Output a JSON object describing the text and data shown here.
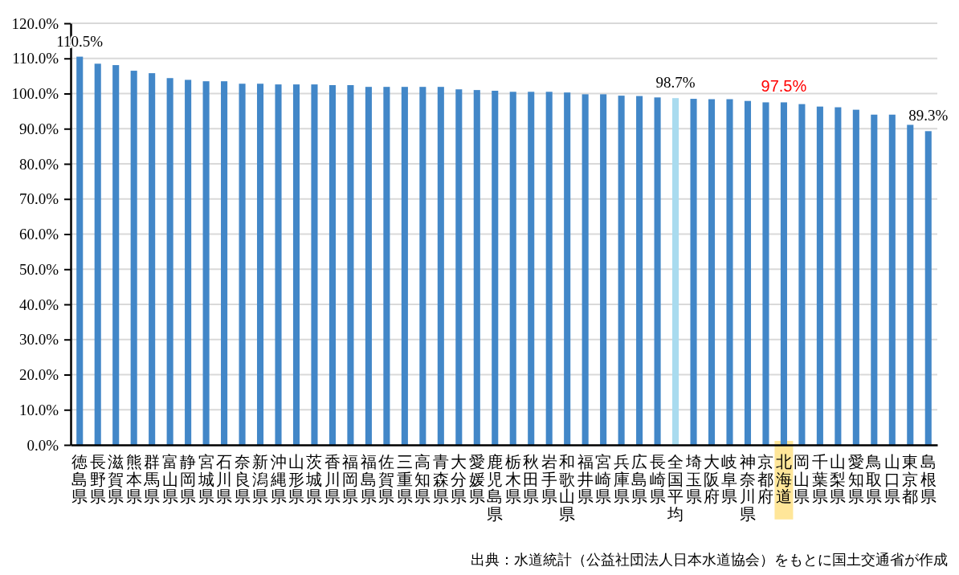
{
  "chart_data": {
    "type": "bar",
    "categories": [
      "徳島県",
      "長野県",
      "滋賀県",
      "熊本県",
      "群馬県",
      "富山県",
      "静岡県",
      "宮城県",
      "石川県",
      "奈良県",
      "新潟県",
      "沖縄県",
      "山形県",
      "茨城県",
      "香川県",
      "福岡県",
      "福島県",
      "佐賀県",
      "三重県",
      "高知県",
      "青森県",
      "大分県",
      "愛媛県",
      "鹿児島県",
      "栃木県",
      "秋田県",
      "岩手県",
      "和歌山県",
      "福井県",
      "宮崎県",
      "兵庫県",
      "広島県",
      "長崎県",
      "全国平均",
      "埼玉県",
      "大阪府",
      "岐阜県",
      "神奈川県",
      "京都府",
      "北海道",
      "岡山県",
      "千葉県",
      "山梨県",
      "愛知県",
      "鳥取県",
      "山口県",
      "東京都",
      "島根県"
    ],
    "values": [
      110.5,
      108.5,
      108.1,
      106.5,
      105.8,
      104.4,
      103.9,
      103.5,
      103.5,
      102.8,
      102.8,
      102.6,
      102.6,
      102.6,
      102.4,
      102.4,
      101.9,
      101.9,
      101.9,
      101.9,
      101.9,
      101.2,
      101.0,
      100.8,
      100.5,
      100.5,
      100.5,
      100.3,
      99.8,
      99.8,
      99.4,
      99.3,
      98.9,
      98.7,
      98.5,
      98.4,
      98.4,
      97.9,
      97.5,
      97.5,
      97.0,
      96.3,
      96.1,
      95.4,
      94.0,
      94.0,
      91.1,
      89.3
    ],
    "colors": [
      "#4287c8",
      "#4287c8",
      "#4287c8",
      "#4287c8",
      "#4287c8",
      "#4287c8",
      "#4287c8",
      "#4287c8",
      "#4287c8",
      "#4287c8",
      "#4287c8",
      "#4287c8",
      "#4287c8",
      "#4287c8",
      "#4287c8",
      "#4287c8",
      "#4287c8",
      "#4287c8",
      "#4287c8",
      "#4287c8",
      "#4287c8",
      "#4287c8",
      "#4287c8",
      "#4287c8",
      "#4287c8",
      "#4287c8",
      "#4287c8",
      "#4287c8",
      "#4287c8",
      "#4287c8",
      "#4287c8",
      "#4287c8",
      "#4287c8",
      "#a9dbef",
      "#4287c8",
      "#4287c8",
      "#4287c8",
      "#4287c8",
      "#4287c8",
      "#4287c8",
      "#4287c8",
      "#4287c8",
      "#4287c8",
      "#4287c8",
      "#4287c8",
      "#4287c8",
      "#4287c8",
      "#4287c8"
    ],
    "value_labels": [
      "110.5%",
      null,
      null,
      null,
      null,
      null,
      null,
      null,
      null,
      null,
      null,
      null,
      null,
      null,
      null,
      null,
      null,
      null,
      null,
      null,
      null,
      null,
      null,
      null,
      null,
      null,
      null,
      null,
      null,
      null,
      null,
      null,
      null,
      "98.7%",
      null,
      null,
      null,
      null,
      null,
      null,
      null,
      null,
      null,
      null,
      null,
      null,
      null,
      "89.3%"
    ],
    "ylim": [
      0,
      120
    ],
    "yticks": [
      {
        "value": 0,
        "label": "0.0%"
      },
      {
        "value": 10,
        "label": "10.0%"
      },
      {
        "value": 20,
        "label": "20.0%"
      },
      {
        "value": 30,
        "label": "30.0%"
      },
      {
        "value": 40,
        "label": "40.0%"
      },
      {
        "value": 50,
        "label": "50.0%"
      },
      {
        "value": 60,
        "label": "60.0%"
      },
      {
        "value": 70,
        "label": "70.0%"
      },
      {
        "value": 80,
        "label": "80.0%"
      },
      {
        "value": 90,
        "label": "90.0%"
      },
      {
        "value": 100,
        "label": "100.0%"
      },
      {
        "value": 110,
        "label": "110.0%"
      },
      {
        "value": 120,
        "label": "120.0%"
      }
    ],
    "grid": "y",
    "annotations": [
      {
        "text": "97.5%",
        "x": "北海道",
        "y": 97.5
      },
      "出典：水道統計（公益社団法人日本水道協会）をもとに国土交通省が作成"
    ]
  }
}
